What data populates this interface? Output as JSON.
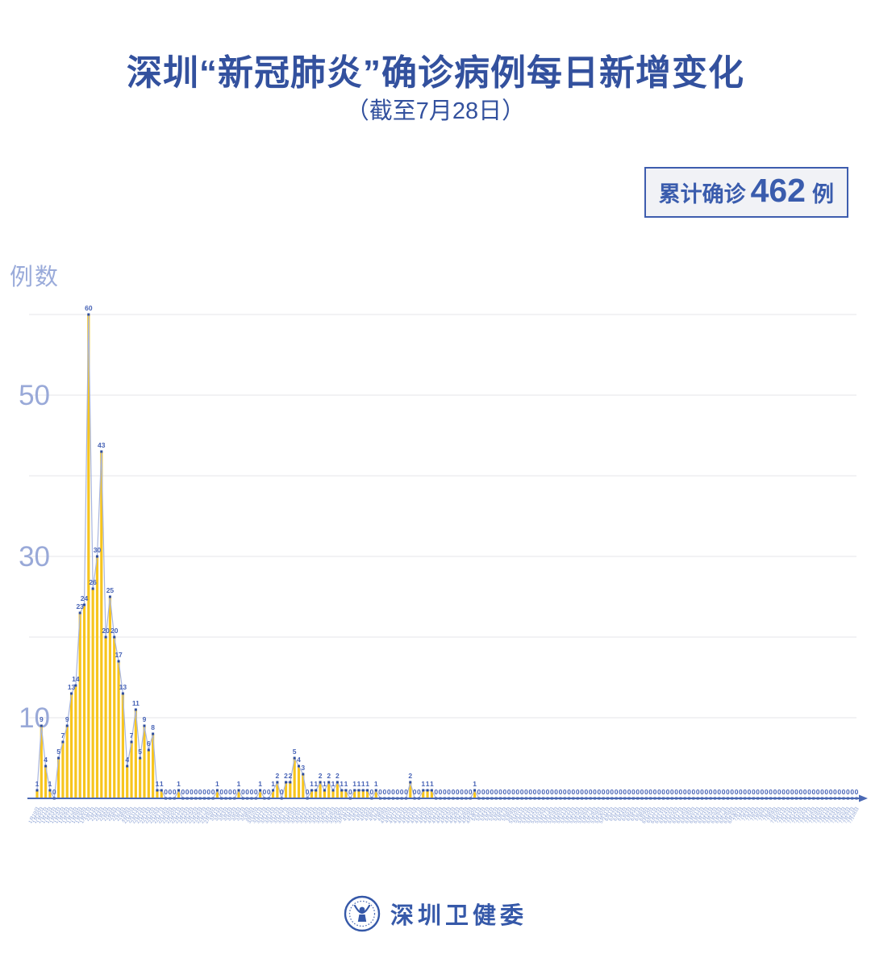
{
  "header": {
    "title": "深圳“新冠肺炎”确诊病例每日新增变化",
    "subtitle": "（截至7月28日）"
  },
  "badge": {
    "prefix": "累计确诊",
    "value": "462",
    "unit": "例"
  },
  "footer": {
    "org_name": "深圳卫健委"
  },
  "chart_data": {
    "type": "area",
    "title": "深圳“新冠肺炎”确诊病例每日新增变化",
    "subtitle": "（截至7月28日）",
    "ylabel": "例数",
    "ylim": [
      0,
      62
    ],
    "gridline_values": [
      10,
      20,
      30,
      40,
      50,
      60
    ],
    "y_tick_labels": [
      10,
      30,
      50
    ],
    "legend": "none",
    "total_cases": 462,
    "x_start_label": "1月19日",
    "x_end_label": "7月28日",
    "x_tick_months": [
      [
        1,
        19,
        31
      ],
      [
        2,
        1,
        29
      ],
      [
        3,
        1,
        31
      ],
      [
        4,
        1,
        30
      ],
      [
        5,
        1,
        31
      ],
      [
        6,
        1,
        30
      ],
      [
        7,
        1,
        28
      ]
    ],
    "values": [
      1,
      9,
      4,
      1,
      0,
      5,
      7,
      9,
      13,
      14,
      23,
      24,
      60,
      26,
      30,
      43,
      20,
      25,
      20,
      17,
      13,
      4,
      7,
      11,
      5,
      9,
      6,
      8,
      1,
      1,
      0,
      0,
      0,
      1,
      0,
      0,
      0,
      0,
      0,
      0,
      0,
      0,
      1,
      0,
      0,
      0,
      0,
      1,
      0,
      0,
      0,
      0,
      1,
      0,
      0,
      1,
      2,
      0,
      2,
      2,
      5,
      4,
      3,
      0,
      1,
      1,
      2,
      1,
      2,
      1,
      2,
      1,
      1,
      0,
      1,
      1,
      1,
      1,
      0,
      1,
      0,
      0,
      0,
      0,
      0,
      0,
      0,
      2,
      0,
      0,
      1,
      1,
      1,
      0,
      0,
      0,
      0,
      0,
      0,
      0,
      0,
      0,
      1,
      0,
      0,
      0,
      0,
      0,
      0,
      0,
      0,
      0,
      0,
      0,
      0,
      0,
      0,
      0,
      0,
      0,
      0,
      0,
      0,
      0,
      0,
      0,
      0,
      0,
      0,
      0,
      0,
      0,
      0,
      0,
      0,
      0,
      0,
      0,
      0,
      0,
      0,
      0,
      0,
      0,
      0,
      0,
      0,
      0,
      0,
      0,
      0,
      0,
      0,
      0,
      0,
      0,
      0,
      0,
      0,
      0,
      0,
      0,
      0,
      0,
      0,
      0,
      0,
      0,
      0,
      0,
      0,
      0,
      0,
      0,
      0,
      0,
      0,
      0,
      0,
      0,
      0,
      0,
      0,
      0,
      0,
      0,
      0,
      0,
      0,
      0,
      0,
      0
    ],
    "colors": {
      "title_blue": "#33519E",
      "bar_yellow": "#F7C51E",
      "line_light_blue": "#A8B5DE",
      "marker_blue": "#2E4D9E",
      "value_label_blue": "#4763B6",
      "axis_blue": "#4A68B4",
      "axis_text_gray_blue": "#99A9D8",
      "date_label_blue": "#8BA1D3",
      "gridline_gray": "#E9E9EE",
      "badge_bg": "#F1F2F6"
    }
  }
}
